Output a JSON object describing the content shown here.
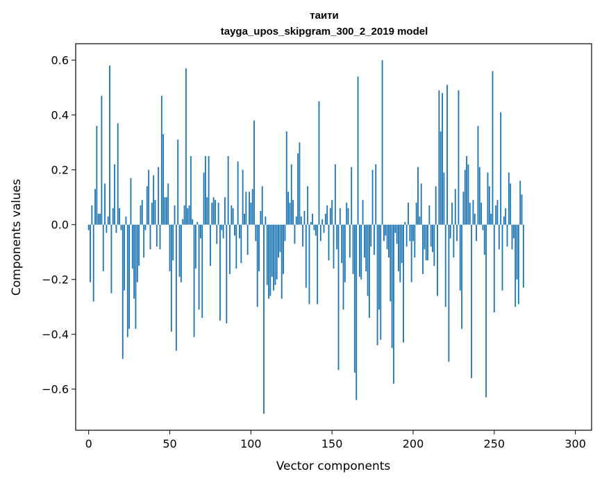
{
  "chart_data": {
    "type": "bar",
    "title": "таити",
    "subtitle": "tayga_upos_skipgram_300_2_2019 model",
    "xlabel": "Vector components",
    "ylabel": "Components values",
    "xlim": [
      -8,
      310
    ],
    "ylim": [
      -0.75,
      0.66
    ],
    "xticks": [
      0,
      50,
      100,
      150,
      200,
      250,
      300
    ],
    "yticks": [
      -0.6,
      -0.4,
      -0.2,
      0.0,
      0.2,
      0.4,
      0.6
    ],
    "ytick_labels": [
      "−0.6",
      "−0.4",
      "−0.2",
      "0.0",
      "0.2",
      "0.4",
      "0.6"
    ],
    "xtick_labels": [
      "0",
      "50",
      "100",
      "150",
      "200",
      "250",
      "300"
    ],
    "bar_color": "#1f77b4",
    "grid": false,
    "values": [
      -0.02,
      -0.21,
      0.07,
      -0.28,
      0.13,
      0.36,
      0.04,
      0.04,
      0.47,
      -0.17,
      0.15,
      -0.03,
      0.03,
      0.58,
      -0.25,
      0.06,
      0.22,
      -0.03,
      0.37,
      0.06,
      -0.02,
      -0.49,
      -0.24,
      0.03,
      -0.41,
      -0.38,
      0.17,
      -0.16,
      -0.27,
      -0.38,
      -0.21,
      -0.15,
      0.07,
      0.09,
      -0.12,
      -0.02,
      0.14,
      0.2,
      -0.09,
      0.08,
      0.18,
      0.09,
      -0.08,
      0.21,
      -0.09,
      0.47,
      0.33,
      0.1,
      0.1,
      0.15,
      -0.17,
      -0.39,
      -0.13,
      0.07,
      -0.46,
      0.31,
      -0.19,
      -0.21,
      0.02,
      0.07,
      0.57,
      0.06,
      0.07,
      0.25,
      0.02,
      -0.41,
      -0.16,
      0.01,
      -0.31,
      -0.05,
      -0.34,
      0.19,
      0.25,
      0.1,
      0.25,
      -0.15,
      0.08,
      0.1,
      0.09,
      -0.07,
      0.08,
      -0.35,
      -0.02,
      -0.05,
      0.1,
      -0.36,
      0.25,
      -0.18,
      0.07,
      0.06,
      -0.04,
      -0.16,
      0.23,
      -0.05,
      -0.14,
      0.2,
      0.04,
      0.12,
      -0.11,
      0.12,
      0.08,
      0.13,
      0.38,
      -0.06,
      -0.3,
      -0.17,
      0.05,
      0.14,
      -0.69,
      0.03,
      -0.22,
      -0.27,
      -0.26,
      -0.19,
      -0.24,
      -0.22,
      -0.2,
      -0.12,
      -0.1,
      -0.27,
      -0.18,
      -0.06,
      0.34,
      0.12,
      0.08,
      0.22,
      0.09,
      -0.07,
      0.03,
      0.26,
      0.3,
      0.03,
      -0.08,
      0.05,
      -0.23,
      0.14,
      -0.29,
      0.01,
      0.04,
      -0.02,
      -0.04,
      -0.29,
      0.45,
      -0.06,
      0.02,
      -0.03,
      0.04,
      0.07,
      -0.13,
      0.06,
      0.09,
      -0.16,
      0.22,
      -0.09,
      -0.53,
      0.06,
      -0.14,
      -0.31,
      -0.21,
      0.08,
      0.06,
      -0.12,
      0.21,
      -0.18,
      -0.54,
      -0.64,
      0.54,
      -0.19,
      -0.2,
      0.09,
      -0.12,
      -0.17,
      -0.26,
      -0.34,
      -0.08,
      0.2,
      -0.11,
      0.22,
      -0.44,
      -0.31,
      -0.42,
      0.6,
      -0.06,
      -0.04,
      -0.09,
      -0.12,
      -0.28,
      -0.45,
      -0.58,
      -0.03,
      -0.07,
      -0.17,
      -0.21,
      -0.14,
      -0.43,
      0.01,
      -0.08,
      0.08,
      -0.06,
      -0.21,
      -0.06,
      -0.12,
      0.08,
      0.21,
      0.03,
      0.15,
      -0.18,
      -0.09,
      -0.13,
      -0.13,
      0.07,
      -0.08,
      -0.1,
      -0.15,
      0.14,
      -0.26,
      0.49,
      0.34,
      0.48,
      0.19,
      -0.3,
      0.51,
      -0.5,
      -0.05,
      0.08,
      -0.12,
      0.13,
      -0.06,
      0.49,
      -0.24,
      -0.38,
      0.12,
      0.2,
      0.25,
      0.22,
      0.08,
      -0.56,
      0.09,
      0.04,
      -0.06,
      0.36,
      0.21,
      0.08,
      -0.02,
      -0.11,
      -0.63,
      0.19,
      0.14,
      0.04,
      0.56,
      -0.32,
      0.07,
      0.09,
      -0.09,
      0.41,
      -0.24,
      0.03,
      0.06,
      -0.08,
      0.19,
      0.15,
      -0.09,
      -0.05,
      -0.3,
      -0.2,
      -0.29,
      0.16,
      0.11,
      -0.23
    ]
  }
}
